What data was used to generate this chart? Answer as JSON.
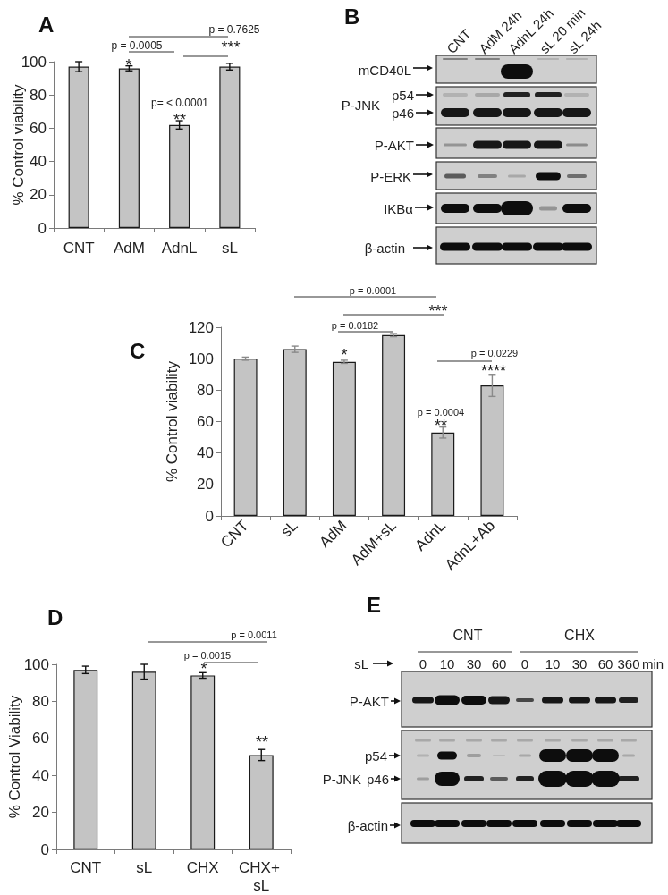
{
  "chart_data": [
    {
      "type": "bar",
      "title": "A",
      "ylabel": "% Control viability",
      "categories": [
        "CNT",
        "AdM",
        "AdnL",
        "sL"
      ],
      "values": [
        97,
        96,
        62,
        97
      ],
      "errors": [
        3,
        1.5,
        2.5,
        2
      ],
      "color": "#c4c4c4",
      "ylim": [
        0,
        100
      ],
      "yticks": [
        0,
        20,
        40,
        60,
        80,
        100
      ],
      "annotations": [
        "p = 0.7625",
        "p = 0.0005",
        "***",
        "*",
        "p= < 0.0001",
        "**"
      ]
    },
    {
      "type": "other",
      "title": "B",
      "annotations": [
        "CNT",
        "AdM 24h",
        "AdnL 24h",
        "sL 20 min",
        "sL 24h",
        "mCD40L",
        "P-JNK",
        "p54",
        "p46",
        "P-AKT",
        "P-ERK",
        "IKBα",
        "β-actin"
      ]
    },
    {
      "type": "bar",
      "title": "C",
      "ylabel": "% Control viability",
      "categories": [
        "CNT",
        "sL",
        "AdM",
        "AdM+sL",
        "AdnL",
        "AdnL+Ab"
      ],
      "values": [
        100,
        106,
        98,
        115,
        53,
        83
      ],
      "errors": [
        1,
        2,
        1,
        1,
        3.5,
        7
      ],
      "color": "#c4c4c4",
      "ylim": [
        0,
        120
      ],
      "yticks": [
        0,
        20,
        40,
        60,
        80,
        100,
        120
      ],
      "annotations": [
        "p = 0.0001",
        "***",
        "p = 0.0182",
        "*",
        "p = 0.0229",
        "****",
        "p = 0.0004",
        "**"
      ]
    },
    {
      "type": "bar",
      "title": "D",
      "ylabel": "% Control Viability",
      "categories": [
        "CNT",
        "sL",
        "CHX",
        "CHX+ sL"
      ],
      "values": [
        97,
        96,
        94,
        51
      ],
      "errors": [
        2,
        4,
        1.5,
        3
      ],
      "color": "#c4c4c4",
      "ylim": [
        0,
        100
      ],
      "yticks": [
        0,
        20,
        40,
        60,
        80,
        100
      ],
      "annotations": [
        "p = 0.0011",
        "p = 0.0015",
        "*",
        "**"
      ]
    },
    {
      "type": "other",
      "title": "E",
      "annotations": [
        "CNT",
        "CHX",
        "sL",
        "0",
        "10",
        "30",
        "60",
        "0",
        "10",
        "30",
        "60",
        "360",
        "min",
        "P-AKT",
        "p54",
        "P-JNK",
        "p46",
        "β-actin"
      ]
    }
  ]
}
